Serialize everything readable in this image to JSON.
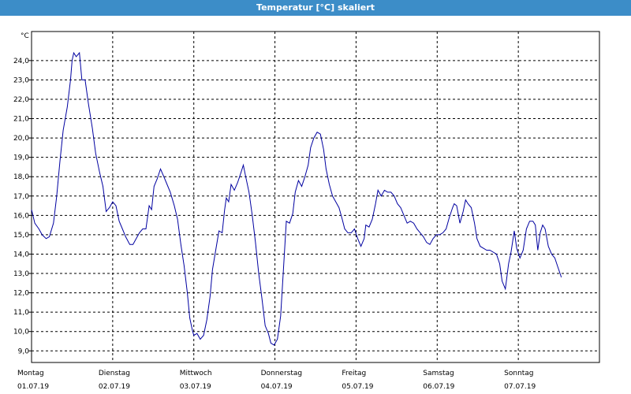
{
  "window": {
    "title": "Temperatur [°C] skaliert"
  },
  "chart_data": {
    "type": "line",
    "title": "Temperatur [°C] skaliert",
    "ylabel": "°C",
    "ylim": [
      8.4,
      25.5
    ],
    "yticks": [
      "9,0",
      "10,0",
      "11,0",
      "12,0",
      "13,0",
      "14,0",
      "15,0",
      "16,0",
      "17,0",
      "18,0",
      "19,0",
      "20,0",
      "21,0",
      "22,0",
      "23,0",
      "24,0"
    ],
    "grid": true,
    "x_unit": "days",
    "xlim": [
      0,
      7
    ],
    "days": [
      {
        "weekday": "Montag",
        "date": "01.07.19"
      },
      {
        "weekday": "Dienstag",
        "date": "02.07.19"
      },
      {
        "weekday": "Mittwoch",
        "date": "03.07.19"
      },
      {
        "weekday": "Donnerstag",
        "date": "04.07.19"
      },
      {
        "weekday": "Freitag",
        "date": "05.07.19"
      },
      {
        "weekday": "Samstag",
        "date": "06.07.19"
      },
      {
        "weekday": "Sonntag",
        "date": "07.07.19"
      }
    ],
    "series": [
      {
        "color": "#0000a0",
        "points": [
          [
            0.0,
            16.3
          ],
          [
            0.04,
            15.6
          ],
          [
            0.09,
            15.3
          ],
          [
            0.13,
            15.0
          ],
          [
            0.18,
            14.8
          ],
          [
            0.22,
            14.9
          ],
          [
            0.27,
            15.6
          ],
          [
            0.31,
            17.0
          ],
          [
            0.35,
            18.8
          ],
          [
            0.39,
            20.4
          ],
          [
            0.44,
            21.6
          ],
          [
            0.48,
            23.0
          ],
          [
            0.5,
            24.0
          ],
          [
            0.52,
            24.4
          ],
          [
            0.55,
            24.2
          ],
          [
            0.59,
            24.4
          ],
          [
            0.62,
            23.0
          ],
          [
            0.66,
            23.0
          ],
          [
            0.7,
            21.8
          ],
          [
            0.75,
            20.5
          ],
          [
            0.79,
            19.2
          ],
          [
            0.84,
            18.2
          ],
          [
            0.88,
            17.5
          ],
          [
            0.92,
            16.2
          ],
          [
            0.96,
            16.4
          ],
          [
            1.0,
            16.7
          ],
          [
            1.04,
            16.5
          ],
          [
            1.08,
            15.7
          ],
          [
            1.12,
            15.3
          ],
          [
            1.16,
            14.9
          ],
          [
            1.21,
            14.5
          ],
          [
            1.25,
            14.5
          ],
          [
            1.29,
            14.8
          ],
          [
            1.33,
            15.1
          ],
          [
            1.37,
            15.3
          ],
          [
            1.41,
            15.3
          ],
          [
            1.45,
            16.5
          ],
          [
            1.48,
            16.3
          ],
          [
            1.51,
            17.5
          ],
          [
            1.55,
            17.9
          ],
          [
            1.59,
            18.4
          ],
          [
            1.63,
            18.0
          ],
          [
            1.67,
            17.6
          ],
          [
            1.71,
            17.2
          ],
          [
            1.76,
            16.5
          ],
          [
            1.8,
            15.8
          ],
          [
            1.84,
            14.5
          ],
          [
            1.88,
            13.4
          ],
          [
            1.92,
            12.0
          ],
          [
            1.95,
            10.7
          ],
          [
            1.98,
            10.1
          ],
          [
            2.0,
            9.8
          ],
          [
            2.04,
            9.9
          ],
          [
            2.08,
            9.6
          ],
          [
            2.12,
            9.8
          ],
          [
            2.16,
            10.6
          ],
          [
            2.2,
            11.8
          ],
          [
            2.23,
            13.2
          ],
          [
            2.27,
            14.2
          ],
          [
            2.31,
            15.2
          ],
          [
            2.35,
            15.1
          ],
          [
            2.38,
            16.3
          ],
          [
            2.4,
            16.9
          ],
          [
            2.43,
            16.7
          ],
          [
            2.46,
            17.6
          ],
          [
            2.5,
            17.3
          ],
          [
            2.54,
            17.7
          ],
          [
            2.58,
            18.2
          ],
          [
            2.61,
            18.6
          ],
          [
            2.64,
            18.0
          ],
          [
            2.68,
            17.2
          ],
          [
            2.72,
            16.0
          ],
          [
            2.76,
            14.6
          ],
          [
            2.8,
            13.0
          ],
          [
            2.84,
            11.7
          ],
          [
            2.88,
            10.3
          ],
          [
            2.92,
            9.9
          ],
          [
            2.95,
            9.4
          ],
          [
            2.99,
            9.3
          ],
          [
            3.03,
            9.6
          ],
          [
            3.07,
            10.8
          ],
          [
            3.1,
            12.9
          ],
          [
            3.14,
            15.7
          ],
          [
            3.18,
            15.6
          ],
          [
            3.22,
            16.1
          ],
          [
            3.25,
            17.2
          ],
          [
            3.29,
            17.8
          ],
          [
            3.33,
            17.5
          ],
          [
            3.37,
            18.0
          ],
          [
            3.41,
            18.6
          ],
          [
            3.44,
            19.5
          ],
          [
            3.48,
            20.0
          ],
          [
            3.52,
            20.3
          ],
          [
            3.56,
            20.2
          ],
          [
            3.6,
            19.4
          ],
          [
            3.63,
            18.4
          ],
          [
            3.67,
            17.6
          ],
          [
            3.71,
            17.0
          ],
          [
            3.75,
            16.7
          ],
          [
            3.79,
            16.4
          ],
          [
            3.83,
            15.8
          ],
          [
            3.86,
            15.3
          ],
          [
            3.9,
            15.1
          ],
          [
            3.94,
            15.1
          ],
          [
            3.98,
            15.3
          ],
          [
            4.02,
            14.8
          ],
          [
            4.06,
            14.4
          ],
          [
            4.1,
            14.8
          ],
          [
            4.12,
            15.5
          ],
          [
            4.16,
            15.4
          ],
          [
            4.2,
            15.8
          ],
          [
            4.24,
            16.6
          ],
          [
            4.27,
            17.3
          ],
          [
            4.31,
            17.0
          ],
          [
            4.35,
            17.3
          ],
          [
            4.39,
            17.2
          ],
          [
            4.43,
            17.2
          ],
          [
            4.47,
            17.0
          ],
          [
            4.51,
            16.6
          ],
          [
            4.55,
            16.4
          ],
          [
            4.59,
            16.0
          ],
          [
            4.63,
            15.6
          ],
          [
            4.67,
            15.7
          ],
          [
            4.71,
            15.6
          ],
          [
            4.75,
            15.3
          ],
          [
            4.79,
            15.1
          ],
          [
            4.83,
            14.9
          ],
          [
            4.87,
            14.6
          ],
          [
            4.91,
            14.5
          ],
          [
            4.95,
            14.8
          ],
          [
            4.99,
            15.0
          ],
          [
            5.03,
            15.0
          ],
          [
            5.07,
            15.1
          ],
          [
            5.11,
            15.3
          ],
          [
            5.15,
            15.9
          ],
          [
            5.19,
            16.4
          ],
          [
            5.21,
            16.6
          ],
          [
            5.24,
            16.5
          ],
          [
            5.28,
            15.6
          ],
          [
            5.32,
            16.2
          ],
          [
            5.35,
            16.8
          ],
          [
            5.38,
            16.6
          ],
          [
            5.42,
            16.4
          ],
          [
            5.46,
            15.6
          ],
          [
            5.49,
            14.8
          ],
          [
            5.53,
            14.4
          ],
          [
            5.57,
            14.3
          ],
          [
            5.61,
            14.2
          ],
          [
            5.65,
            14.2
          ],
          [
            5.69,
            14.1
          ],
          [
            5.73,
            14.0
          ],
          [
            5.77,
            13.5
          ],
          [
            5.8,
            12.6
          ],
          [
            5.84,
            12.2
          ],
          [
            5.88,
            13.5
          ],
          [
            5.91,
            14.1
          ],
          [
            5.95,
            15.2
          ],
          [
            5.98,
            14.3
          ],
          [
            6.02,
            13.8
          ],
          [
            6.06,
            14.2
          ],
          [
            6.1,
            15.3
          ],
          [
            6.14,
            15.7
          ],
          [
            6.18,
            15.7
          ],
          [
            6.21,
            15.5
          ],
          [
            6.24,
            14.2
          ],
          [
            6.27,
            15.1
          ],
          [
            6.3,
            15.5
          ],
          [
            6.33,
            15.3
          ],
          [
            6.37,
            14.4
          ],
          [
            6.41,
            14.0
          ],
          [
            6.45,
            13.8
          ],
          [
            6.49,
            13.3
          ],
          [
            6.53,
            12.8
          ]
        ]
      }
    ]
  }
}
